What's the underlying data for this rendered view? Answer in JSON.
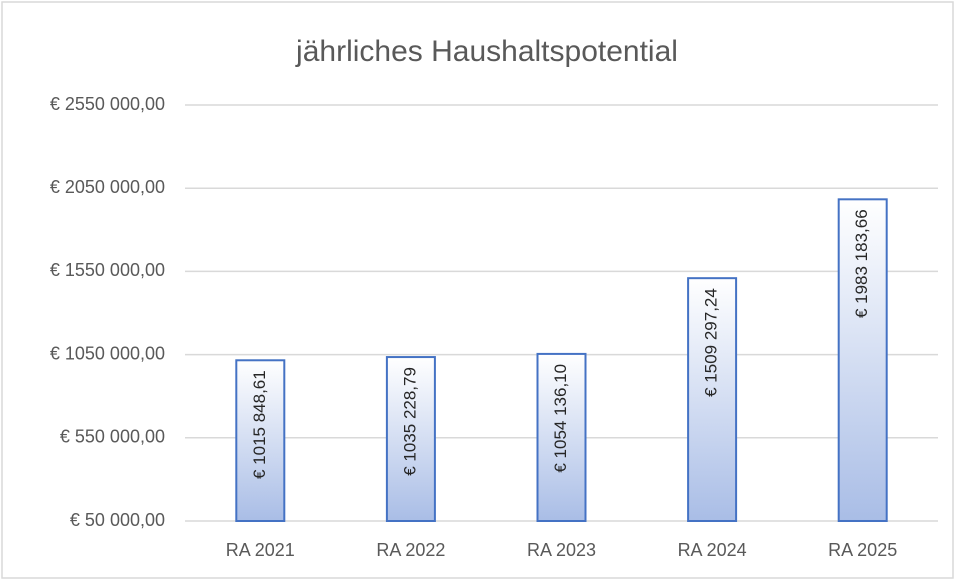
{
  "chart_data": {
    "type": "bar",
    "title": "jährliches Haushaltspotential",
    "categories": [
      "RA 2021",
      "RA 2022",
      "RA 2023",
      "RA 2024",
      "RA 2025"
    ],
    "values": [
      1015848.61,
      1035228.79,
      1054136.1,
      1509297.24,
      1983183.66
    ],
    "value_labels": [
      "€ 1015 848,61",
      "€ 1035 228,79",
      "€ 1054 136,10",
      "€ 1509 297,24",
      "€ 1983 183,66"
    ],
    "color": "#4472c4",
    "ylim": [
      50000,
      2550000
    ],
    "yticks": [
      {
        "value": 50000,
        "label": "€ 50 000,00"
      },
      {
        "value": 550000,
        "label": "€ 550 000,00"
      },
      {
        "value": 1050000,
        "label": "€ 1050 000,00"
      },
      {
        "value": 1550000,
        "label": "€ 1550 000,00"
      },
      {
        "value": 2050000,
        "label": "€ 2050 000,00"
      },
      {
        "value": 2550000,
        "label": "€ 2550 000,00"
      }
    ],
    "grid": true
  }
}
